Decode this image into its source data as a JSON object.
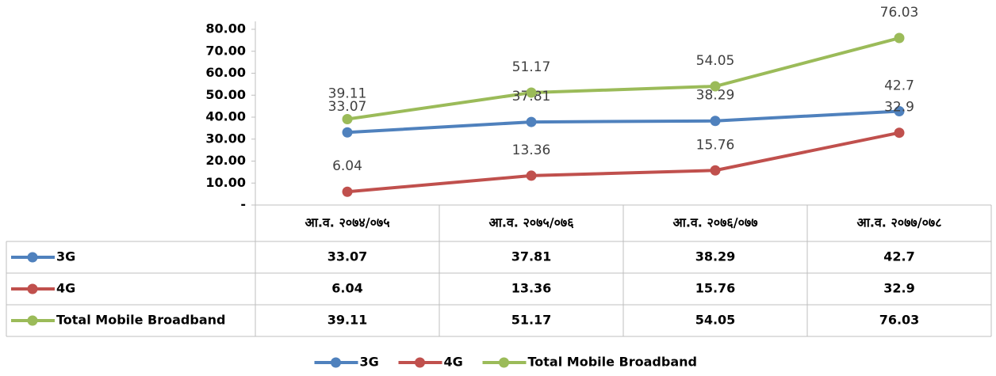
{
  "chart_data": {
    "type": "line",
    "categories": [
      "आ.व. २०७४/०७५",
      "आ.व. २०७५/०७६",
      "आ.व. २०७६/०७७",
      "आ.व. २०७७/०७८"
    ],
    "series": [
      {
        "name": "3G",
        "color": "#4f81bd",
        "values": [
          33.07,
          37.81,
          38.29,
          42.7
        ]
      },
      {
        "name": "4G",
        "color": "#c0504d",
        "values": [
          6.04,
          13.36,
          15.76,
          32.9
        ]
      },
      {
        "name": "Total Mobile Broadband",
        "color": "#9bbb59",
        "values": [
          39.11,
          51.17,
          54.05,
          76.03
        ]
      }
    ],
    "ylim": [
      0,
      80
    ],
    "yticks": [
      {
        "value": 0,
        "label": "-"
      },
      {
        "value": 10,
        "label": "10.00"
      },
      {
        "value": 20,
        "label": "20.00"
      },
      {
        "value": 30,
        "label": "30.00"
      },
      {
        "value": 40,
        "label": "40.00"
      },
      {
        "value": 50,
        "label": "50.00"
      },
      {
        "value": 60,
        "label": "60.00"
      },
      {
        "value": 70,
        "label": "70.00"
      },
      {
        "value": 80,
        "label": "80.00"
      }
    ],
    "grid": false,
    "legend": "bottom",
    "data_table": true
  }
}
